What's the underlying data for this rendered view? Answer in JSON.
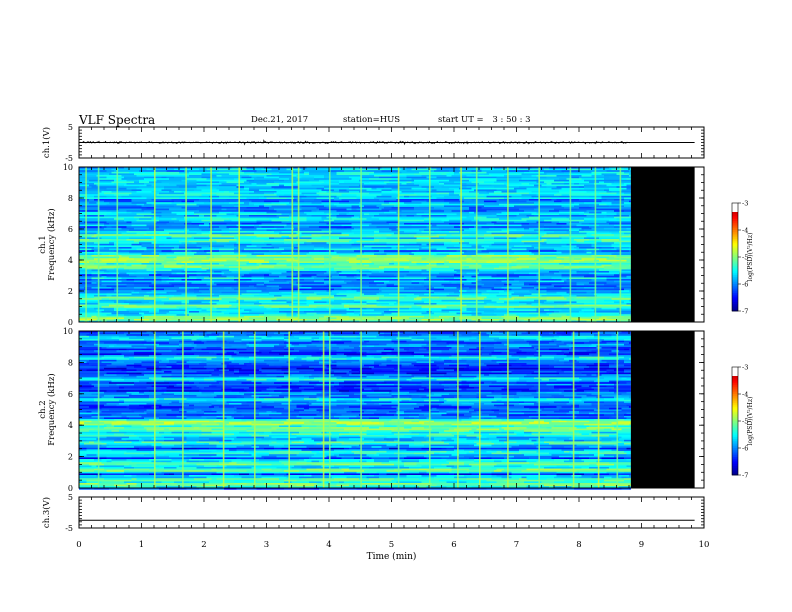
{
  "header": {
    "title": "VLF Spectra",
    "date": "Dec.21, 2017",
    "station": "station=HUS",
    "start_label": "start  UT =",
    "start_time": "3 : 50 : 3"
  },
  "chart_data": [
    {
      "type": "line",
      "panel": "ch1-waveform",
      "ylabel": "ch.1(V)",
      "ylim": [
        -5,
        5
      ],
      "yticks": [
        5,
        -5
      ],
      "xlim": [
        0,
        10
      ],
      "x": [
        0,
        8.83,
        8.83,
        9.85
      ],
      "y": [
        0,
        0,
        0,
        0
      ],
      "noise_amplitude_V": 0.35,
      "noise_until_min": 8.83
    },
    {
      "type": "heatmap",
      "panel": "ch1-spectrogram",
      "ylabel": "ch.1\nFrequency (kHz)",
      "xlim": [
        0,
        10
      ],
      "ylim": [
        0,
        10
      ],
      "yticks": [
        0,
        2,
        4,
        6,
        8,
        10
      ],
      "data_end_min": 8.83,
      "no_data_until_min": 9.85,
      "no_data_color": "#000000",
      "background_level_log": -5.85,
      "bands_kHz": [
        {
          "freq": 0.3,
          "level": -5.0
        },
        {
          "freq": 1.1,
          "level": -5.1
        },
        {
          "freq": 1.6,
          "level": -5.1
        },
        {
          "freq": 3.6,
          "level": -5.1
        },
        {
          "freq": 4.0,
          "level": -4.9
        },
        {
          "freq": 4.3,
          "level": -5.1
        },
        {
          "freq": 5.3,
          "level": -5.3
        },
        {
          "freq": 5.6,
          "level": -5.2
        },
        {
          "freq": 6.7,
          "level": -5.5
        },
        {
          "freq": 8.3,
          "level": -5.6
        },
        {
          "freq": 9.6,
          "level": -5.5
        }
      ],
      "spikes_min": [
        0.1,
        0.3,
        0.6,
        1.2,
        1.7,
        2.1,
        2.55,
        3.4,
        3.5,
        4.0,
        4.5,
        5.1,
        5.6,
        6.1,
        6.35,
        6.85,
        7.35,
        7.85,
        8.25,
        8.65
      ],
      "colorbar": {
        "label": "log(PSD)(V²/Hz)",
        "ticks": [
          -3,
          -4,
          -5,
          -6,
          -7
        ],
        "range": [
          -7,
          -3
        ]
      }
    },
    {
      "type": "heatmap",
      "panel": "ch2-spectrogram",
      "ylabel": "ch.2\nFrequency (kHz)",
      "xlim": [
        0,
        10
      ],
      "ylim": [
        0,
        10
      ],
      "yticks": [
        0,
        2,
        4,
        6,
        8,
        10
      ],
      "data_end_min": 8.83,
      "no_data_until_min": 9.85,
      "no_data_color": "#000000",
      "background_level_log": -6.15,
      "bands_kHz": [
        {
          "freq": 0.3,
          "level": -5.0
        },
        {
          "freq": 0.6,
          "level": -5.2
        },
        {
          "freq": 1.2,
          "level": -5.1
        },
        {
          "freq": 1.6,
          "level": -5.1
        },
        {
          "freq": 2.3,
          "level": -5.3
        },
        {
          "freq": 2.9,
          "level": -5.3
        },
        {
          "freq": 3.4,
          "level": -5.3
        },
        {
          "freq": 3.8,
          "level": -5.1
        },
        {
          "freq": 4.2,
          "level": -4.9
        },
        {
          "freq": 5.7,
          "level": -5.5
        },
        {
          "freq": 7.0,
          "level": -5.5
        },
        {
          "freq": 8.3,
          "level": -5.5
        },
        {
          "freq": 9.6,
          "level": -5.6
        }
      ],
      "spikes_min": [
        0.3,
        1.2,
        1.65,
        2.3,
        2.8,
        3.35,
        3.9,
        4.0,
        4.5,
        5.1,
        5.6,
        6.05,
        6.4,
        6.85,
        7.35,
        7.9,
        8.3,
        8.6
      ],
      "colorbar": {
        "label": "log(PSD)(V²/Hz)",
        "ticks": [
          -3,
          -4,
          -5,
          -6,
          -7
        ],
        "range": [
          -7,
          -3
        ]
      }
    },
    {
      "type": "line",
      "panel": "ch3-waveform",
      "ylabel": "ch.3(V)",
      "ylim": [
        -5,
        5
      ],
      "yticks": [
        5,
        -5
      ],
      "xlim": [
        0,
        10
      ],
      "x": [
        0,
        9.85
      ],
      "y": [
        -2.5,
        -2.5
      ],
      "xlabel": "Time (min)",
      "xticks": [
        0,
        1,
        2,
        3,
        4,
        5,
        6,
        7,
        8,
        9,
        10
      ]
    }
  ]
}
